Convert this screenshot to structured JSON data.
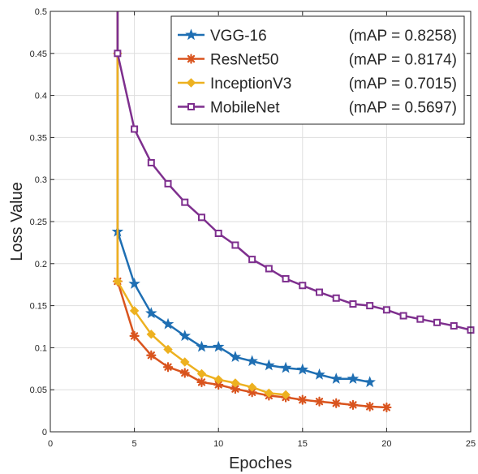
{
  "chart_data": {
    "type": "line",
    "title": "",
    "xlabel": "Epoches",
    "ylabel": "Loss Value",
    "xlim": [
      0,
      25
    ],
    "ylim": [
      0,
      0.5
    ],
    "xticks": [
      0,
      5,
      10,
      15,
      20,
      25
    ],
    "yticks": [
      0,
      0.05,
      0.1,
      0.15,
      0.2,
      0.25,
      0.3,
      0.35,
      0.4,
      0.45,
      0.5
    ],
    "xtick_labels": [
      "0",
      "5",
      "10",
      "15",
      "20",
      "25"
    ],
    "ytick_labels": [
      "0",
      "0.05",
      "0.1",
      "0.15",
      "0.2",
      "0.25",
      "0.3",
      "0.35",
      "0.4",
      "0.45",
      "0.5"
    ],
    "grid": true,
    "legend": {
      "position": "top-right"
    },
    "series": [
      {
        "name": "VGG-16",
        "map_label": "(mAP = 0.8258)",
        "color": "#1f6fb3",
        "marker": "star",
        "x": [
          4,
          4,
          5,
          6,
          7,
          8,
          9,
          10,
          11,
          12,
          13,
          14,
          15,
          16,
          17,
          18,
          19
        ],
        "y": [
          0.5,
          0.238,
          0.176,
          0.141,
          0.128,
          0.114,
          0.101,
          0.101,
          0.089,
          0.084,
          0.079,
          0.076,
          0.074,
          0.068,
          0.063,
          0.063,
          0.059
        ]
      },
      {
        "name": "ResNet50",
        "map_label": "(mAP = 0.8174)",
        "color": "#d9541e",
        "marker": "asterisk",
        "x": [
          4,
          4,
          5,
          6,
          7,
          8,
          9,
          10,
          11,
          12,
          13,
          14,
          15,
          16,
          17,
          18,
          19,
          20
        ],
        "y": [
          0.5,
          0.179,
          0.114,
          0.091,
          0.077,
          0.07,
          0.059,
          0.056,
          0.051,
          0.047,
          0.043,
          0.041,
          0.038,
          0.036,
          0.034,
          0.032,
          0.03,
          0.029
        ]
      },
      {
        "name": "InceptionV3",
        "map_label": "(mAP = 0.7015)",
        "color": "#edb120",
        "marker": "diamond",
        "x": [
          4,
          4,
          5,
          6,
          7,
          8,
          9,
          10,
          11,
          12,
          13,
          14
        ],
        "y": [
          0.45,
          0.179,
          0.144,
          0.116,
          0.098,
          0.083,
          0.069,
          0.062,
          0.058,
          0.053,
          0.046,
          0.044
        ]
      },
      {
        "name": "MobileNet",
        "map_label": "(mAP = 0.5697)",
        "color": "#7e2f8e",
        "marker": "square",
        "x": [
          4,
          4,
          5,
          6,
          7,
          8,
          9,
          10,
          11,
          12,
          13,
          14,
          15,
          16,
          17,
          18,
          19,
          20,
          21,
          22,
          23,
          24,
          25
        ],
        "y": [
          0.5,
          0.45,
          0.36,
          0.32,
          0.295,
          0.273,
          0.255,
          0.236,
          0.222,
          0.205,
          0.194,
          0.182,
          0.174,
          0.166,
          0.159,
          0.152,
          0.15,
          0.145,
          0.138,
          0.134,
          0.13,
          0.126,
          0.121
        ]
      }
    ]
  }
}
